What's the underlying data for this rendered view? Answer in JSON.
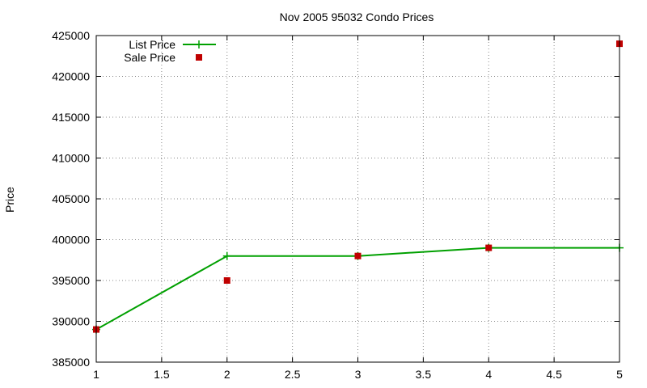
{
  "chart_data": {
    "type": "line",
    "title": "Nov 2005 95032 Condo Prices",
    "xlabel": "",
    "ylabel": "Price",
    "xlim": [
      1,
      5
    ],
    "ylim": [
      385000,
      425000
    ],
    "x_ticks": [
      "1",
      "1.5",
      "2",
      "2.5",
      "3",
      "3.5",
      "4",
      "4.5",
      "5"
    ],
    "y_ticks": [
      "385000",
      "390000",
      "395000",
      "400000",
      "405000",
      "410000",
      "415000",
      "420000",
      "425000"
    ],
    "grid": true,
    "legend_position": "top-left",
    "series": [
      {
        "name": "List Price",
        "style": "line-with-plus-markers",
        "color": "#00a000",
        "x": [
          1,
          2,
          3,
          4,
          5
        ],
        "values": [
          389000,
          398000,
          398000,
          399000,
          399000
        ]
      },
      {
        "name": "Sale Price",
        "style": "square-markers",
        "color": "#c00000",
        "x": [
          1,
          2,
          3,
          4,
          5
        ],
        "values": [
          389000,
          395000,
          398000,
          399000,
          424000
        ]
      }
    ]
  }
}
